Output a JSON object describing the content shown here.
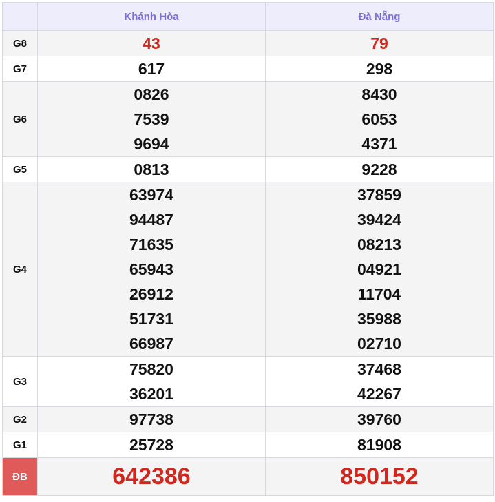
{
  "header": {
    "provinces": [
      "Khánh Hòa",
      "Đà Nẵng"
    ]
  },
  "colors": {
    "header_text": "#7b6fd6",
    "highlight": "#d0281e",
    "db_label_bg": "#e05a5a"
  },
  "rows": [
    {
      "label": "G8",
      "cols": [
        [
          "43"
        ],
        [
          "79"
        ]
      ]
    },
    {
      "label": "G7",
      "cols": [
        [
          "617"
        ],
        [
          "298"
        ]
      ]
    },
    {
      "label": "G6",
      "cols": [
        [
          "0826",
          "7539",
          "9694"
        ],
        [
          "8430",
          "6053",
          "4371"
        ]
      ]
    },
    {
      "label": "G5",
      "cols": [
        [
          "0813"
        ],
        [
          "9228"
        ]
      ]
    },
    {
      "label": "G4",
      "cols": [
        [
          "63974",
          "94487",
          "71635",
          "65943",
          "26912",
          "51731",
          "66987"
        ],
        [
          "37859",
          "39424",
          "08213",
          "04921",
          "11704",
          "35988",
          "02710"
        ]
      ]
    },
    {
      "label": "G3",
      "cols": [
        [
          "75820",
          "36201"
        ],
        [
          "37468",
          "42267"
        ]
      ]
    },
    {
      "label": "G2",
      "cols": [
        [
          "97738"
        ],
        [
          "39760"
        ]
      ]
    },
    {
      "label": "G1",
      "cols": [
        [
          "25728"
        ],
        [
          "81908"
        ]
      ]
    },
    {
      "label": "ĐB",
      "cols": [
        [
          "642386"
        ],
        [
          "850152"
        ]
      ]
    }
  ]
}
